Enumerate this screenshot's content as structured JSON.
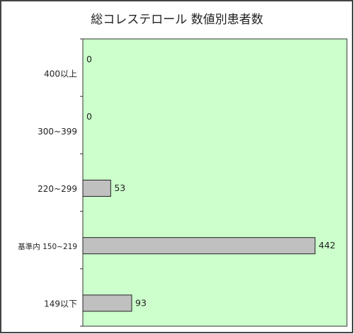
{
  "chart_data": {
    "type": "bar",
    "orientation": "horizontal",
    "title": "総コレステロール 数値別患者数",
    "categories": [
      "400以上",
      "300~399",
      "220~299",
      "基準内 150~219",
      "149以下"
    ],
    "values": [
      0,
      0,
      53,
      442,
      93
    ],
    "data_labels": [
      "0",
      "0",
      "53",
      "442",
      "93"
    ],
    "xlim": [
      0,
      500
    ],
    "grid": false,
    "legend": "none"
  },
  "colors": {
    "plot_background": "#ccffcc",
    "bar_fill": "#c0c0c0",
    "bar_stroke": "#222222",
    "frame": "#444444"
  }
}
